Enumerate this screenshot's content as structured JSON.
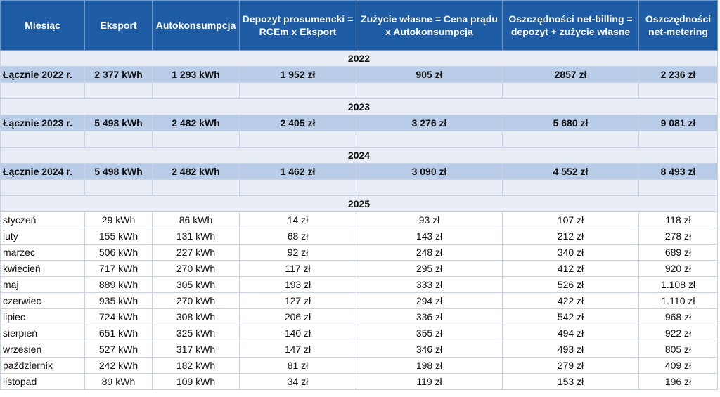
{
  "header": [
    "Miesiąc",
    "Eksport",
    "Autokonsumpcja",
    "Depozyt prosumencki = RCEm x Eksport",
    "Zużycie własne = Cena prądu x Autokonsumpcja",
    "Oszczędności net-billing = depozyt + zużycie własne",
    "Oszczędności net-metering"
  ],
  "sections": [
    {
      "year": "2022",
      "rows": [
        [
          "Łącznie 2022 r.",
          "2 377 kWh",
          "1 293 kWh",
          "1 952 zł",
          "905 zł",
          "2857 zł",
          "2 236 zł"
        ]
      ]
    },
    {
      "year": "2023",
      "rows": [
        [
          "Łącznie 2023 r.",
          "5 498 kWh",
          "2 482 kWh",
          "2 405 zł",
          "3 276 zł",
          "5 680 zł",
          "9 081 zł"
        ]
      ]
    },
    {
      "year": "2024",
      "rows": [
        [
          "Łącznie 2024 r.",
          "5 498 kWh",
          "2 482 kWh",
          "1 462 zł",
          "3 090 zł",
          "4 552 zł",
          "8 493 zł"
        ]
      ]
    },
    {
      "year": "2025",
      "rows": [
        [
          "styczeń",
          "29 kWh",
          "86 kWh",
          "14 zł",
          "93 zł",
          "107 zł",
          "118 zł"
        ],
        [
          "luty",
          "155 kWh",
          "131 kWh",
          "68 zł",
          "143 zł",
          "212 zł",
          "278 zł"
        ],
        [
          "marzec",
          "506 kWh",
          "227 kWh",
          "92 zł",
          "248 zł",
          "340 zł",
          "689 zł"
        ],
        [
          "kwiecień",
          "717 kWh",
          "270 kWh",
          "117 zł",
          "295 zł",
          "412 zł",
          "920 zł"
        ],
        [
          "maj",
          "889 kWh",
          "305 kWh",
          "193 zł",
          "333 zł",
          "526 zł",
          "1.108 zł"
        ],
        [
          "czerwiec",
          "935 kWh",
          "270 kWh",
          "127 zł",
          "294 zł",
          "422 zł",
          "1.110 zł"
        ],
        [
          "lipiec",
          "724 kWh",
          "308 kWh",
          "206 zł",
          "336 zł",
          "542 zł",
          "968 zł"
        ],
        [
          "sierpień",
          "651 kWh",
          "325 kWh",
          "140 zł",
          "355 zł",
          "494 zł",
          "922 zł"
        ],
        [
          "wrzesień",
          "527 kWh",
          "317 kWh",
          "147 zł",
          "346 zł",
          "493 zł",
          "805 zł"
        ],
        [
          "październik",
          "242 kWh",
          "182 kWh",
          "81 zł",
          "198 zł",
          "279 zł",
          "409 zł"
        ],
        [
          "listopad",
          "89 kWh",
          "109 kWh",
          "34 zł",
          "119 zł",
          "153 zł",
          "196 zł"
        ]
      ]
    }
  ]
}
